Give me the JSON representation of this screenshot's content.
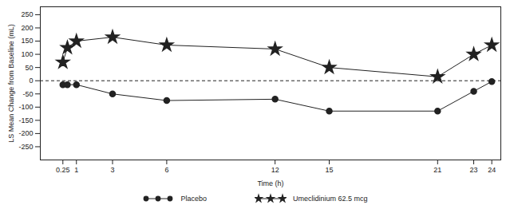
{
  "chart_data": {
    "type": "line",
    "x_label": "Time (h)",
    "y_label": "LS Mean Change from Baseline (mL)",
    "x": [
      0.25,
      0.5,
      1,
      3,
      6,
      12,
      15,
      21,
      23,
      24
    ],
    "series": [
      {
        "name": "Placebo",
        "color": "#222222",
        "marker": "circle",
        "values": [
          -15,
          -15,
          -15,
          -50,
          -75,
          -70,
          -115,
          -115,
          -40,
          -3
        ]
      },
      {
        "name": "Umeclidinium 62.5 mcg",
        "color": "#222222",
        "marker": "star",
        "values": [
          70,
          125,
          150,
          165,
          135,
          120,
          50,
          15,
          100,
          135
        ]
      }
    ],
    "xlim": [
      -1,
      24.5
    ],
    "xticks": [
      0.25,
      1,
      3,
      6,
      12,
      15,
      21,
      23,
      24
    ],
    "ylim": [
      -300,
      280
    ],
    "yticks": [
      -250,
      -200,
      -150,
      -100,
      -50,
      0,
      50,
      100,
      150,
      200,
      250
    ],
    "grid": false,
    "legend": "bottom"
  }
}
